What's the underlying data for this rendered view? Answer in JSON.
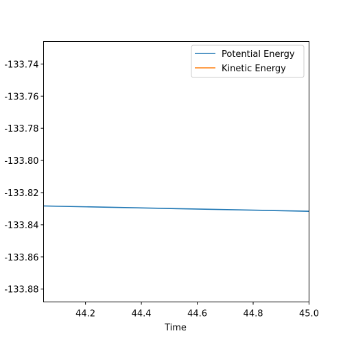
{
  "chart_data": {
    "type": "line",
    "title": "",
    "xlabel": "Time",
    "ylabel": "",
    "xlim": [
      44.05,
      45.0
    ],
    "ylim": [
      -133.888,
      -133.726
    ],
    "x_ticks": [
      44.2,
      44.4,
      44.6,
      44.8,
      45.0
    ],
    "x_tick_labels": [
      "44.2",
      "44.4",
      "44.6",
      "44.8",
      "45.0"
    ],
    "y_ticks": [
      -133.74,
      -133.76,
      -133.78,
      -133.8,
      -133.82,
      -133.84,
      -133.86,
      -133.88
    ],
    "y_tick_labels": [
      "-133.74",
      "-133.76",
      "-133.78",
      "-133.80",
      "-133.82",
      "-133.84",
      "-133.86",
      "-133.88"
    ],
    "grid": false,
    "legend_position": "top-right",
    "series": [
      {
        "name": "Potential Energy",
        "color": "#1f77b4",
        "x": [
          44.05,
          45.0
        ],
        "y": [
          -133.8283,
          -133.8316
        ]
      },
      {
        "name": "Kinetic Energy",
        "color": "#ff7f0e",
        "x": [],
        "y": []
      }
    ]
  }
}
